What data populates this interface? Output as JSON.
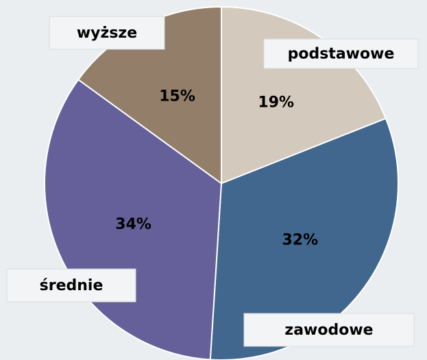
{
  "chart_data": {
    "type": "pie",
    "categories": [
      "podstawowe",
      "zawodowe",
      "średnie",
      "wyższe"
    ],
    "values": [
      19,
      32,
      34,
      15
    ],
    "value_labels": [
      "19%",
      "32%",
      "34%",
      "15%"
    ],
    "colors": [
      "#d3c9bc",
      "#41678f",
      "#65609a",
      "#927e69"
    ]
  }
}
